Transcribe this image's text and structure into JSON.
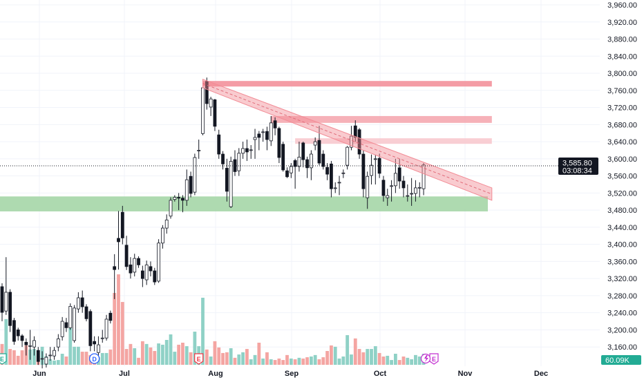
{
  "chart_data": {
    "type": "candlestick",
    "y_ticks": [
      3960,
      3920,
      3880,
      3840,
      3800,
      3760,
      3720,
      3680,
      3640,
      3600,
      3560,
      3520,
      3480,
      3440,
      3400,
      3360,
      3320,
      3280,
      3240,
      3200,
      3160
    ],
    "ylim": [
      3152,
      3968
    ],
    "x_month_labels": [
      "Jun",
      "Jul",
      "Aug",
      "Sep",
      "Oct",
      "Nov",
      "Dec"
    ],
    "grid": true,
    "ohlc": [
      [
        3301,
        3309,
        3220,
        3241
      ],
      [
        3244,
        3370,
        3235,
        3288
      ],
      [
        3288,
        3295,
        3195,
        3210
      ],
      [
        3222,
        3228,
        3165,
        3173
      ],
      [
        3200,
        3205,
        3175,
        3186
      ],
      [
        3186,
        3190,
        3160,
        3175
      ],
      [
        3171,
        3180,
        3140,
        3165
      ],
      [
        3163,
        3200,
        3130,
        3163
      ],
      [
        3160,
        3185,
        3140,
        3175
      ],
      [
        3152,
        3160,
        3118,
        3126
      ],
      [
        3133,
        3150,
        3110,
        3133
      ],
      [
        3120,
        3145,
        3112,
        3136
      ],
      [
        3141,
        3160,
        3128,
        3141
      ],
      [
        3139,
        3160,
        3130,
        3152
      ],
      [
        3160,
        3190,
        3150,
        3179
      ],
      [
        3184,
        3230,
        3175,
        3220
      ],
      [
        3217,
        3228,
        3195,
        3205
      ],
      [
        3205,
        3262,
        3200,
        3255
      ],
      [
        3175,
        3258,
        3170,
        3251
      ],
      [
        3249,
        3288,
        3240,
        3275
      ],
      [
        3275,
        3292,
        3240,
        3254
      ],
      [
        3254,
        3260,
        3220,
        3226
      ],
      [
        3243,
        3248,
        3150,
        3163
      ],
      [
        3173,
        3185,
        3150,
        3167
      ],
      [
        3147,
        3185,
        3140,
        3165
      ],
      [
        3181,
        3200,
        3170,
        3181
      ],
      [
        3181,
        3235,
        3175,
        3225
      ],
      [
        3239,
        3245,
        3215,
        3222
      ],
      [
        3348,
        3377,
        3272,
        3341
      ],
      [
        3414,
        3478,
        3341,
        3406
      ],
      [
        3475,
        3490,
        3400,
        3415
      ],
      [
        3398,
        3420,
        3340,
        3348
      ],
      [
        3352,
        3370,
        3320,
        3333
      ],
      [
        3335,
        3378,
        3325,
        3367
      ],
      [
        3367,
        3372,
        3345,
        3352
      ],
      [
        3338,
        3350,
        3300,
        3320
      ],
      [
        3317,
        3362,
        3305,
        3352
      ],
      [
        3348,
        3360,
        3325,
        3338
      ],
      [
        3338,
        3345,
        3305,
        3312
      ],
      [
        3314,
        3412,
        3310,
        3403
      ],
      [
        3403,
        3445,
        3390,
        3438
      ],
      [
        3438,
        3470,
        3425,
        3457
      ],
      [
        3466,
        3510,
        3460,
        3503
      ],
      [
        3505,
        3515,
        3500,
        3510
      ],
      [
        3510,
        3520,
        3480,
        3508
      ],
      [
        3508,
        3515,
        3475,
        3503
      ],
      [
        3503,
        3575,
        3490,
        3551
      ],
      [
        3559,
        3570,
        3510,
        3519
      ],
      [
        3522,
        3612,
        3515,
        3603
      ],
      [
        3620,
        3645,
        3600,
        3620
      ],
      [
        3659,
        3785,
        3655,
        3766
      ],
      [
        3781,
        3790,
        3715,
        3729
      ],
      [
        3721,
        3745,
        3700,
        3740
      ],
      [
        3738,
        3740,
        3665,
        3676
      ],
      [
        3656,
        3668,
        3600,
        3611
      ],
      [
        3611,
        3618,
        3575,
        3588
      ],
      [
        3578,
        3600,
        3500,
        3524
      ],
      [
        3488,
        3605,
        3485,
        3594
      ],
      [
        3598,
        3620,
        3560,
        3570
      ],
      [
        3572,
        3625,
        3560,
        3613
      ],
      [
        3613,
        3640,
        3600,
        3624
      ],
      [
        3624,
        3645,
        3595,
        3616
      ],
      [
        3621,
        3632,
        3600,
        3621
      ],
      [
        3645,
        3670,
        3600,
        3650
      ],
      [
        3658,
        3665,
        3620,
        3650
      ],
      [
        3663,
        3670,
        3640,
        3663
      ],
      [
        3664,
        3675,
        3620,
        3645
      ],
      [
        3642,
        3700,
        3630,
        3684
      ],
      [
        3689,
        3697,
        3655,
        3672
      ],
      [
        3671,
        3675,
        3590,
        3603
      ],
      [
        3634,
        3640,
        3570,
        3574
      ],
      [
        3572,
        3580,
        3555,
        3558
      ],
      [
        3567,
        3590,
        3555,
        3582
      ],
      [
        3596,
        3600,
        3530,
        3582
      ],
      [
        3582,
        3640,
        3570,
        3604
      ],
      [
        3637,
        3640,
        3580,
        3598
      ],
      [
        3598,
        3605,
        3555,
        3579
      ],
      [
        3579,
        3620,
        3550,
        3611
      ],
      [
        3632,
        3650,
        3620,
        3640
      ],
      [
        3643,
        3677,
        3585,
        3590
      ],
      [
        3611,
        3620,
        3575,
        3582
      ],
      [
        3580,
        3590,
        3550,
        3564
      ],
      [
        3588,
        3595,
        3510,
        3530
      ],
      [
        3532,
        3545,
        3520,
        3532
      ],
      [
        3545,
        3560,
        3515,
        3545
      ],
      [
        3567,
        3575,
        3555,
        3567
      ],
      [
        3585,
        3630,
        3575,
        3627
      ],
      [
        3627,
        3677,
        3620,
        3653
      ],
      [
        3677,
        3690,
        3640,
        3650
      ],
      [
        3668,
        3672,
        3600,
        3611
      ],
      [
        3611,
        3620,
        3510,
        3530
      ],
      [
        3509,
        3570,
        3483,
        3559
      ],
      [
        3561,
        3610,
        3540,
        3585
      ],
      [
        3600,
        3610,
        3540,
        3600
      ],
      [
        3601,
        3612,
        3555,
        3566
      ],
      [
        3550,
        3560,
        3500,
        3514
      ],
      [
        3509,
        3530,
        3490,
        3514
      ],
      [
        3537,
        3550,
        3500,
        3537
      ],
      [
        3537,
        3600,
        3520,
        3566
      ],
      [
        3579,
        3600,
        3530,
        3548
      ],
      [
        3548,
        3560,
        3510,
        3532
      ],
      [
        3514,
        3540,
        3500,
        3514
      ],
      [
        3519,
        3555,
        3490,
        3519
      ],
      [
        3519,
        3550,
        3500,
        3532
      ],
      [
        3533,
        3545,
        3510,
        3533
      ],
      [
        3530,
        3590,
        3515,
        3585.8
      ]
    ],
    "volume_k": [
      113,
      248,
      86,
      79,
      49,
      79,
      105,
      83,
      86,
      49,
      98,
      45,
      30,
      23,
      26,
      60,
      45,
      199,
      98,
      98,
      71,
      71,
      53,
      56,
      41,
      64,
      64,
      83,
      390,
      491,
      341,
      86,
      113,
      90,
      38,
      128,
      113,
      94,
      75,
      116,
      109,
      135,
      165,
      71,
      109,
      120,
      101,
      68,
      180,
      101,
      364,
      83,
      45,
      128,
      94,
      64,
      68,
      90,
      38,
      56,
      68,
      86,
      30,
      53,
      120,
      34,
      68,
      30,
      26,
      34,
      26,
      53,
      34,
      30,
      38,
      34,
      41,
      45,
      53,
      30,
      41,
      75,
      105,
      98,
      34,
      45,
      161,
      56,
      143,
      86,
      68,
      86,
      86,
      101,
      64,
      45,
      49,
      26,
      60,
      26,
      45,
      38,
      30,
      53,
      45,
      60.09
    ],
    "zones": [
      {
        "kind": "support",
        "color": "#a5d6a7",
        "price_low": 3477,
        "price_high": 3512,
        "from_bar": 0,
        "to_bar": 121
      },
      {
        "kind": "resistance",
        "color": "#f28b95",
        "price_low": 3769,
        "price_high": 3782,
        "from_bar": 50,
        "to_bar": 122
      },
      {
        "kind": "resistance",
        "color": "#f5a3ab",
        "price_low": 3684,
        "price_high": 3700,
        "from_bar": 67,
        "to_bar": 122
      },
      {
        "kind": "resistance",
        "color": "#f8c6cb",
        "price_low": 3635,
        "price_high": 3648,
        "from_bar": 73,
        "to_bar": 122
      }
    ],
    "channel": {
      "color": "#f28b95",
      "from_bar": 50,
      "to_bar": 122,
      "top": [
        3786,
        3532
      ],
      "bottom": [
        3766,
        3503
      ]
    },
    "last_price": "3,585.80",
    "countdown": "03:08:34",
    "last_volume": "60.09K",
    "colors": {
      "up_body": "#ffffff",
      "down_body": "#131722",
      "vol_up": "#8fd1c6",
      "vol_down": "#f4a5a2",
      "price_tag": "#131722",
      "volume_tag": "#22ab94"
    },
    "events": [
      {
        "letter": "E",
        "color": "#22ab94",
        "bar": 0
      },
      {
        "letter": "D",
        "color": "#2962ff",
        "bar": 23
      },
      {
        "letter": "E",
        "color": "#f23645",
        "bar": 49
      },
      {
        "letter": "E",
        "color": "#c22ed0",
        "bar": 106,
        "with": "lightning-icon"
      }
    ]
  }
}
